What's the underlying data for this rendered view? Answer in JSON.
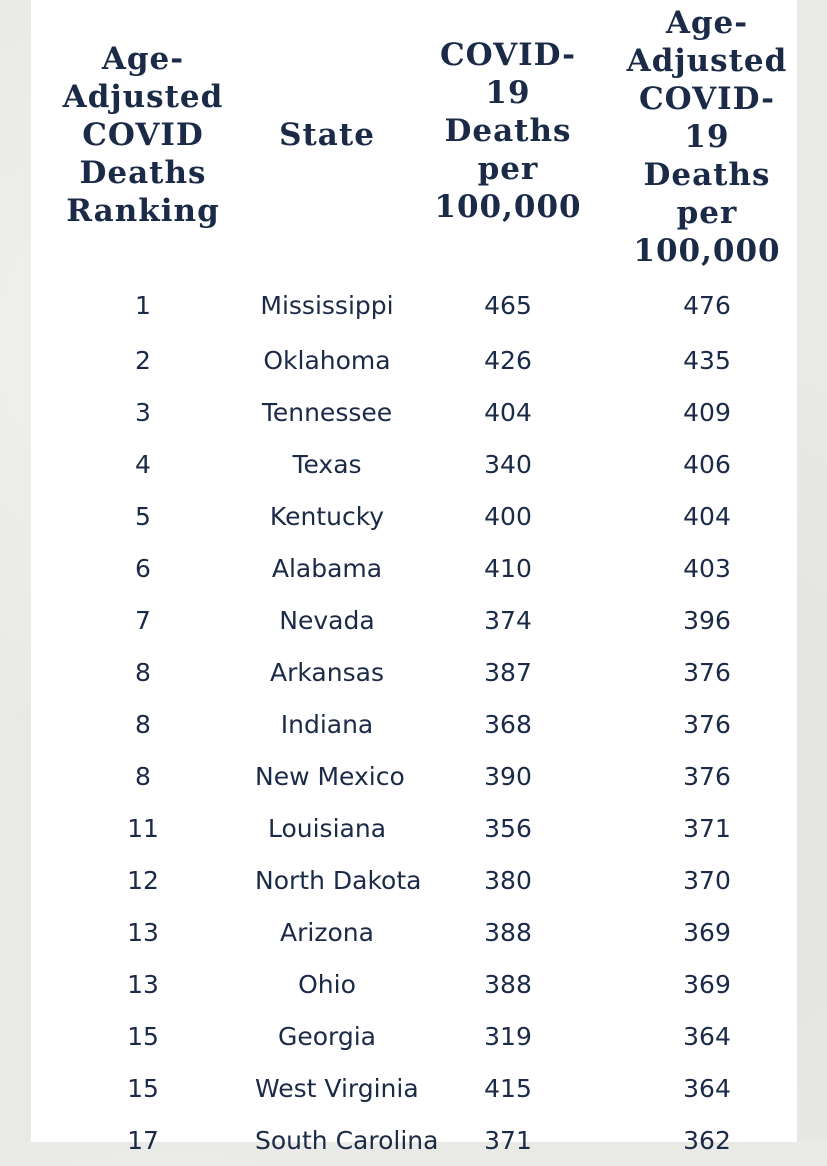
{
  "chart_data": {
    "type": "table",
    "columns": [
      [
        "Age-",
        "Adjusted",
        "COVID",
        "Deaths",
        "Ranking"
      ],
      [
        "State"
      ],
      [
        "COVID-",
        "19",
        "Deaths",
        "per",
        "100,000"
      ],
      [
        "Age-",
        "Adjusted",
        "COVID-",
        "19 Deaths",
        "per",
        "100,000"
      ]
    ],
    "rows": [
      [
        "1",
        "Mississippi",
        "465",
        "476"
      ],
      [
        "2",
        "Oklahoma",
        "426",
        "435"
      ],
      [
        "3",
        "Tennessee",
        "404",
        "409"
      ],
      [
        "4",
        "Texas",
        "340",
        "406"
      ],
      [
        "5",
        "Kentucky",
        "400",
        "404"
      ],
      [
        "6",
        "Alabama",
        "410",
        "403"
      ],
      [
        "7",
        "Nevada",
        "374",
        "396"
      ],
      [
        "8",
        "Arkansas",
        "387",
        "376"
      ],
      [
        "8",
        "Indiana",
        "368",
        "376"
      ],
      [
        "8",
        "New Mexico",
        "390",
        "376"
      ],
      [
        "11",
        "Louisiana",
        "356",
        "371"
      ],
      [
        "12",
        "North Dakota",
        "380",
        "370"
      ],
      [
        "13",
        "Arizona",
        "388",
        "369"
      ],
      [
        "13",
        "Ohio",
        "388",
        "369"
      ],
      [
        "15",
        "Georgia",
        "319",
        "364"
      ],
      [
        "15",
        "West Virginia",
        "415",
        "364"
      ],
      [
        "17",
        "South Carolina",
        "371",
        "362"
      ]
    ]
  },
  "colors": {
    "text": "#1b2b47",
    "panel": "#ffffff",
    "background": "#e9e9e6"
  }
}
